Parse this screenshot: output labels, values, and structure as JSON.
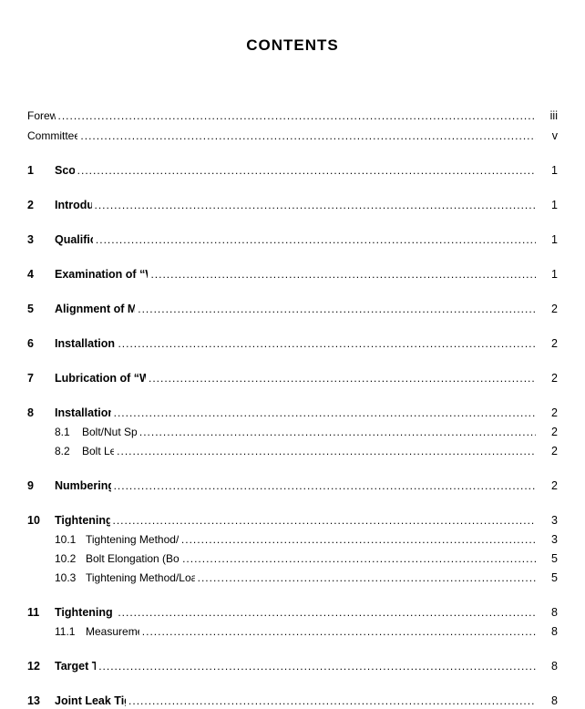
{
  "heading": "CONTENTS",
  "entries": [
    {
      "type": "front",
      "title": "Foreword",
      "page": "iii"
    },
    {
      "type": "front",
      "title": "Committee Roster",
      "page": "v"
    },
    {
      "type": "gap"
    },
    {
      "type": "section",
      "num": "1",
      "title": "Scope",
      "page": "1"
    },
    {
      "type": "gap"
    },
    {
      "type": "section",
      "num": "2",
      "title": "Introduction",
      "page": "1"
    },
    {
      "type": "gap"
    },
    {
      "type": "section",
      "num": "3",
      "title": "Qualification",
      "page": "1"
    },
    {
      "type": "gap"
    },
    {
      "type": "section",
      "num": "4",
      "title": "Examination of “Working” Surfaces",
      "page": "1"
    },
    {
      "type": "gap"
    },
    {
      "type": "section",
      "num": "5",
      "title": "Alignment of Mating Surfaces",
      "page": "2"
    },
    {
      "type": "gap"
    },
    {
      "type": "section",
      "num": "6",
      "title": "Installation of Gasket",
      "page": "2"
    },
    {
      "type": "gap"
    },
    {
      "type": "section",
      "num": "7",
      "title": "Lubrication of “Working” Surfaces",
      "page": "2"
    },
    {
      "type": "gap"
    },
    {
      "type": "section",
      "num": "8",
      "title": "Installation of Bolts",
      "page": "2"
    },
    {
      "type": "sub",
      "num": "8.1",
      "title": "Bolt/Nut Specifications",
      "page": "2"
    },
    {
      "type": "sub",
      "num": "8.2",
      "title": "Bolt Lengths",
      "page": "2"
    },
    {
      "type": "gap"
    },
    {
      "type": "section",
      "num": "9",
      "title": "Numbering of Bolts",
      "page": "2"
    },
    {
      "type": "gap"
    },
    {
      "type": "section",
      "num": "10",
      "title": "Tightening of Bolts",
      "page": "3"
    },
    {
      "type": "sub",
      "num": "10.1",
      "wide": true,
      "title": "Tightening Method/Load Control Technique",
      "page": "3"
    },
    {
      "type": "sub",
      "num": "10.2",
      "wide": true,
      "title": "Bolt Elongation (Bolt Stretch) Determination",
      "page": "5"
    },
    {
      "type": "sub",
      "num": "10.3",
      "wide": true,
      "title": "Tightening Method/Load Control Technique Selection",
      "page": "5"
    },
    {
      "type": "gap"
    },
    {
      "type": "section",
      "num": "11",
      "title": "Tightening Sequence",
      "page": "8"
    },
    {
      "type": "sub",
      "num": "11.1",
      "wide": true,
      "title": "Measurement of Gaps",
      "page": "8"
    },
    {
      "type": "gap"
    },
    {
      "type": "section",
      "num": "12",
      "title": "Target Torque",
      "page": "8"
    },
    {
      "type": "gap"
    },
    {
      "type": "section",
      "num": "13",
      "title": "Joint Leak Tightness Test",
      "page": "8"
    }
  ]
}
